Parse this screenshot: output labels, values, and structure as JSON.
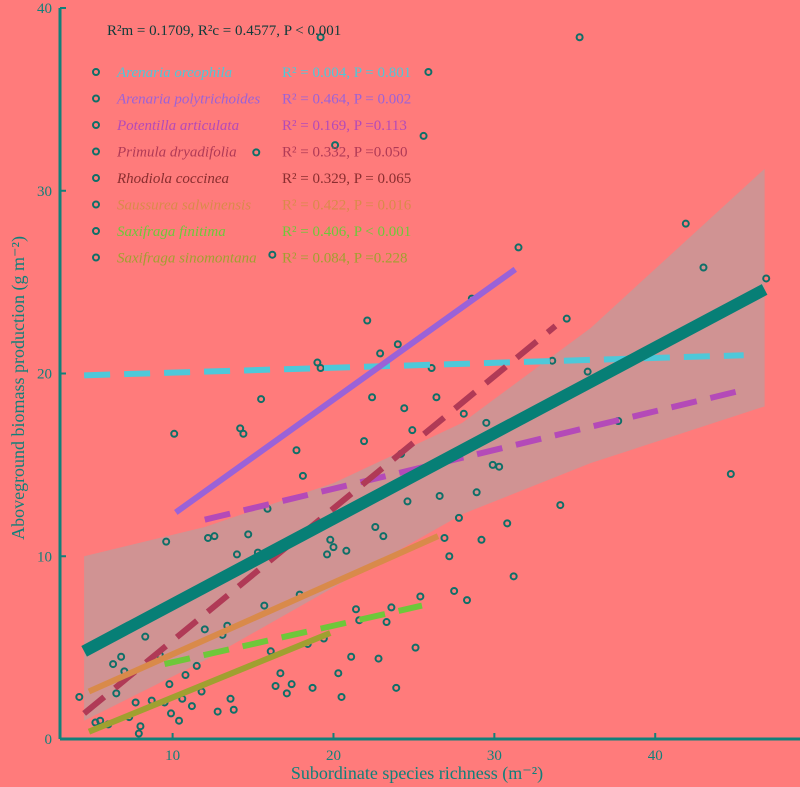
{
  "colors": {
    "background": "#ff7b7b",
    "axis": "#11807a",
    "points": "#0f6f68",
    "overall_line": "#077f76",
    "ci_band": "#b7a0a0"
  },
  "chart_data": {
    "type": "scatter",
    "title": "",
    "summary_text": "R²m = 0.1709,  R²c = 0.4577,  P < 0.001",
    "xlabel": "Subordinate species richness (m⁻²)",
    "ylabel": "Aboveground biomass production  (g m⁻²)",
    "xlim": [
      3,
      49
    ],
    "ylim": [
      0,
      40
    ],
    "xticks": [
      10,
      20,
      30,
      40
    ],
    "yticks": [
      0,
      10,
      20,
      30,
      40
    ],
    "legend_position": "top-left",
    "overall_fit": {
      "x": [
        4.5,
        46.8
      ],
      "y": [
        4.8,
        24.6
      ],
      "ci_lower": [
        [
          4.5,
          1.0
        ],
        [
          12,
          4.3
        ],
        [
          20,
          8.3
        ],
        [
          28,
          12.3
        ],
        [
          36,
          15.1
        ],
        [
          46.8,
          18.2
        ]
      ],
      "ci_upper": [
        [
          4.5,
          10.0
        ],
        [
          12,
          11.6
        ],
        [
          20,
          14.0
        ],
        [
          28,
          17.3
        ],
        [
          36,
          22.5
        ],
        [
          46.8,
          31.2
        ]
      ]
    },
    "series": [
      {
        "name": "Arenaria oreophila",
        "stats": "R² = 0.004, P = 0.801",
        "color": "#4ec8d9",
        "dashed": true,
        "x": [
          4.5,
          45.5
        ],
        "y": [
          19.9,
          21.0
        ]
      },
      {
        "name": "Arenaria polytrichoides",
        "stats": "R² = 0.464,  P = 0.002",
        "color": "#9a62d8",
        "dashed": false,
        "x": [
          10.2,
          31.3
        ],
        "y": [
          12.4,
          25.7
        ]
      },
      {
        "name": "Potentilla articulata",
        "stats": "R² = 0.169, P =0.113",
        "color": "#b44ab8",
        "dashed": true,
        "x": [
          12,
          45.5
        ],
        "y": [
          12.0,
          19.1
        ]
      },
      {
        "name": "Primula dryadifolia",
        "stats": "R² = 0.332, P =0.050",
        "color": "#b03a56",
        "dashed": true,
        "x": [
          4.5,
          33.8
        ],
        "y": [
          1.4,
          22.6
        ]
      },
      {
        "name": "Rhodiola coccinea",
        "stats": "R² = 0.329, P = 0.065",
        "color": "#8a2e30",
        "dashed": true,
        "x": [],
        "y": []
      },
      {
        "name": "Saussurea salwinensis",
        "stats": "R² = 0.422, P = 0.016",
        "color": "#d98a4a",
        "dashed": false,
        "x": [
          4.8,
          26.5
        ],
        "y": [
          2.6,
          11.1
        ]
      },
      {
        "name": "Saxifraga finitima",
        "stats": "R² = 0.406, P < 0.001",
        "color": "#6ec83a",
        "dashed": true,
        "x": [
          9.5,
          25.5
        ],
        "y": [
          4.1,
          7.3
        ]
      },
      {
        "name": "Saxifraga sinomontana",
        "stats": "R² = 0.084, P =0.228",
        "color": "#a0a030",
        "dashed": false,
        "x": [
          4.8,
          19.8
        ],
        "y": [
          0.4,
          5.8
        ]
      }
    ],
    "points": [
      [
        4.2,
        2.3
      ],
      [
        5.2,
        0.9
      ],
      [
        5.5,
        1.0
      ],
      [
        6.0,
        0.8
      ],
      [
        6.3,
        4.1
      ],
      [
        6.5,
        2.5
      ],
      [
        6.8,
        4.5
      ],
      [
        7.0,
        3.7
      ],
      [
        7.3,
        1.2
      ],
      [
        7.7,
        2.0
      ],
      [
        7.9,
        0.3
      ],
      [
        8.0,
        0.7
      ],
      [
        8.3,
        5.6
      ],
      [
        8.7,
        2.1
      ],
      [
        9.2,
        4.6
      ],
      [
        9.5,
        2.0
      ],
      [
        9.8,
        3.0
      ],
      [
        9.9,
        1.4
      ],
      [
        9.6,
        10.8
      ],
      [
        10.1,
        16.7
      ],
      [
        10.4,
        1.0
      ],
      [
        10.6,
        2.2
      ],
      [
        10.8,
        3.5
      ],
      [
        11.2,
        1.8
      ],
      [
        11.5,
        4.0
      ],
      [
        11.8,
        2.6
      ],
      [
        12.0,
        6.0
      ],
      [
        12.2,
        11.0
      ],
      [
        12.6,
        11.1
      ],
      [
        12.8,
        1.5
      ],
      [
        13.1,
        5.7
      ],
      [
        13.4,
        6.2
      ],
      [
        13.6,
        2.2
      ],
      [
        13.8,
        1.6
      ],
      [
        14.0,
        10.1
      ],
      [
        14.2,
        17.0
      ],
      [
        14.4,
        16.7
      ],
      [
        14.7,
        11.2
      ],
      [
        15.0,
        9.8
      ],
      [
        15.3,
        10.2
      ],
      [
        15.5,
        18.6
      ],
      [
        15.7,
        7.3
      ],
      [
        15.9,
        12.6
      ],
      [
        16.1,
        4.8
      ],
      [
        16.4,
        2.9
      ],
      [
        16.7,
        3.6
      ],
      [
        17.1,
        2.5
      ],
      [
        17.4,
        3.0
      ],
      [
        17.7,
        15.8
      ],
      [
        17.9,
        7.9
      ],
      [
        18.1,
        14.4
      ],
      [
        18.4,
        5.2
      ],
      [
        18.7,
        2.8
      ],
      [
        19.0,
        20.6
      ],
      [
        19.2,
        38.4
      ],
      [
        19.4,
        5.5
      ],
      [
        19.6,
        10.1
      ],
      [
        19.8,
        10.9
      ],
      [
        20.0,
        10.5
      ],
      [
        20.3,
        3.6
      ],
      [
        20.5,
        2.3
      ],
      [
        20.8,
        10.3
      ],
      [
        21.1,
        4.5
      ],
      [
        21.4,
        7.1
      ],
      [
        21.6,
        6.5
      ],
      [
        21.9,
        16.3
      ],
      [
        22.1,
        22.9
      ],
      [
        22.4,
        18.7
      ],
      [
        22.6,
        11.6
      ],
      [
        22.8,
        4.4
      ],
      [
        23.1,
        11.1
      ],
      [
        23.3,
        6.4
      ],
      [
        23.6,
        7.2
      ],
      [
        23.9,
        2.8
      ],
      [
        24.2,
        15.6
      ],
      [
        24.4,
        18.1
      ],
      [
        24.6,
        13.0
      ],
      [
        24.9,
        16.9
      ],
      [
        25.1,
        5.0
      ],
      [
        25.4,
        7.8
      ],
      [
        25.6,
        33.0
      ],
      [
        25.9,
        36.5
      ],
      [
        26.1,
        20.3
      ],
      [
        26.4,
        18.7
      ],
      [
        26.6,
        13.3
      ],
      [
        26.9,
        11.0
      ],
      [
        27.2,
        10.0
      ],
      [
        27.5,
        8.1
      ],
      [
        27.8,
        12.1
      ],
      [
        28.1,
        17.8
      ],
      [
        28.3,
        7.6
      ],
      [
        28.6,
        24.1
      ],
      [
        28.9,
        13.5
      ],
      [
        29.2,
        10.9
      ],
      [
        29.5,
        17.3
      ],
      [
        29.9,
        15.0
      ],
      [
        30.3,
        14.9
      ],
      [
        30.8,
        11.8
      ],
      [
        31.2,
        8.9
      ],
      [
        31.5,
        26.9
      ],
      [
        33.6,
        20.7
      ],
      [
        34.1,
        12.8
      ],
      [
        34.5,
        23.0
      ],
      [
        35.3,
        38.4
      ],
      [
        35.8,
        20.1
      ],
      [
        37.7,
        17.4
      ],
      [
        41.9,
        28.2
      ],
      [
        43.0,
        25.8
      ],
      [
        44.7,
        14.5
      ],
      [
        46.9,
        25.2
      ],
      [
        16.2,
        26.5
      ],
      [
        24.0,
        21.6
      ],
      [
        22.9,
        21.1
      ],
      [
        19.2,
        20.3
      ],
      [
        15.2,
        32.1
      ],
      [
        20.1,
        32.5
      ]
    ]
  }
}
